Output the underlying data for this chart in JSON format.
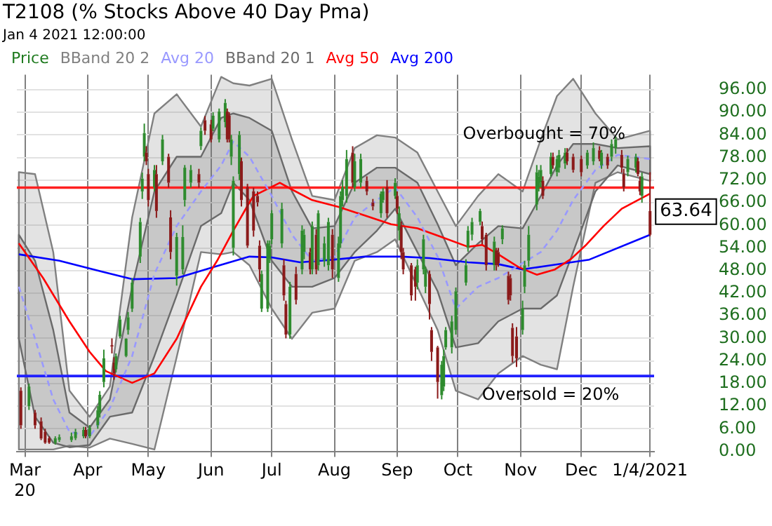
{
  "chart_data": {
    "type": "candlestick",
    "title": "T2108 (% Stocks Above 40 Day Pma)",
    "subtitle": "Jan 4 2021 12:00:00",
    "legend": "top left",
    "grid": true,
    "marker": "none",
    "xlim": [
      "2020-02-26",
      "2021-01-06"
    ],
    "xticks": [
      {
        "value": "2020-03-01",
        "label": "Mar\n20"
      },
      {
        "value": "2020-04-01",
        "label": "Apr"
      },
      {
        "value": "2020-05-01",
        "label": "May"
      },
      {
        "value": "2020-06-01",
        "label": "Jun"
      },
      {
        "value": "2020-07-01",
        "label": "Jul"
      },
      {
        "value": "2020-08-01",
        "label": "Aug"
      },
      {
        "value": "2020-09-01",
        "label": "Sep"
      },
      {
        "value": "2020-10-01",
        "label": "Oct"
      },
      {
        "value": "2020-11-01",
        "label": "Nov"
      },
      {
        "value": "2020-12-01",
        "label": "Dec"
      },
      {
        "value": "2021-01-04",
        "label": "1/4/2021"
      }
    ],
    "ylim": [
      0,
      100
    ],
    "yticks": [
      {
        "value": 0,
        "label": "0.00"
      },
      {
        "value": 6,
        "label": "6.00"
      },
      {
        "value": 12,
        "label": "12.00"
      },
      {
        "value": 18,
        "label": "18.00"
      },
      {
        "value": 24,
        "label": "24.00"
      },
      {
        "value": 30,
        "label": "30.00"
      },
      {
        "value": 36,
        "label": "36.00"
      },
      {
        "value": 42,
        "label": "42.00"
      },
      {
        "value": 48,
        "label": "48.00"
      },
      {
        "value": 54,
        "label": "54.00"
      },
      {
        "value": 60,
        "label": "60.00"
      },
      {
        "value": 66,
        "label": "66.00"
      },
      {
        "value": 72,
        "label": "72.00"
      },
      {
        "value": 78,
        "label": "78.00"
      },
      {
        "value": 84,
        "label": "84.00"
      },
      {
        "value": 90,
        "label": "90.00"
      },
      {
        "value": 96,
        "label": "96.00"
      }
    ],
    "ref_lines": [
      {
        "axis": "y",
        "value": 70,
        "label": "Overbought = 70%",
        "color": "#ff2020"
      },
      {
        "axis": "y",
        "value": 20,
        "label": "Oversold = 20%",
        "color": "#2020ff"
      }
    ],
    "annotations": [
      {
        "text": "63.64",
        "x": "2021-01-04",
        "y": 63.64
      }
    ],
    "series": [
      {
        "name": "Price",
        "type": "candlestick",
        "color": "#1e7a1e",
        "x": [
          "2020-02-28",
          "2020-03-03",
          "2020-03-06",
          "2020-03-09",
          "2020-03-11",
          "2020-03-13",
          "2020-03-16",
          "2020-03-18",
          "2020-03-24",
          "2020-03-26",
          "2020-03-30",
          "2020-03-31",
          "2020-04-02",
          "2020-04-06",
          "2020-04-07",
          "2020-04-09",
          "2020-04-13",
          "2020-04-14",
          "2020-04-15",
          "2020-04-17",
          "2020-04-20",
          "2020-04-21",
          "2020-04-23",
          "2020-04-27",
          "2020-04-28",
          "2020-04-29",
          "2020-04-30",
          "2020-05-01",
          "2020-05-04",
          "2020-05-05",
          "2020-05-08",
          "2020-05-11",
          "2020-05-12",
          "2020-05-15",
          "2020-05-18",
          "2020-05-19",
          "2020-05-22",
          "2020-05-26",
          "2020-05-27",
          "2020-05-29",
          "2020-06-01",
          "2020-06-02",
          "2020-06-05",
          "2020-06-08",
          "2020-06-09",
          "2020-06-10",
          "2020-06-11",
          "2020-06-12",
          "2020-06-15",
          "2020-06-16",
          "2020-06-19",
          "2020-06-22",
          "2020-06-24",
          "2020-06-25",
          "2020-06-26",
          "2020-06-29",
          "2020-06-30",
          "2020-07-01",
          "2020-07-06",
          "2020-07-07",
          "2020-07-08",
          "2020-07-10",
          "2020-07-13",
          "2020-07-16",
          "2020-07-17",
          "2020-07-20",
          "2020-07-21",
          "2020-07-23",
          "2020-07-24",
          "2020-07-27",
          "2020-07-29",
          "2020-07-31",
          "2020-08-03",
          "2020-08-04",
          "2020-08-05",
          "2020-08-07",
          "2020-08-10",
          "2020-08-11",
          "2020-08-14",
          "2020-08-17",
          "2020-08-20",
          "2020-08-24",
          "2020-08-25",
          "2020-08-27",
          "2020-08-31",
          "2020-09-01",
          "2020-09-02",
          "2020-09-03",
          "2020-09-04",
          "2020-09-08",
          "2020-09-10",
          "2020-09-11",
          "2020-09-14",
          "2020-09-15",
          "2020-09-17",
          "2020-09-18",
          "2020-09-21",
          "2020-09-23",
          "2020-09-24",
          "2020-09-25",
          "2020-09-28",
          "2020-09-30",
          "2020-10-05",
          "2020-10-06",
          "2020-10-08",
          "2020-10-12",
          "2020-10-13",
          "2020-10-15",
          "2020-10-19",
          "2020-10-20",
          "2020-10-21",
          "2020-10-23",
          "2020-10-26",
          "2020-10-27",
          "2020-10-28",
          "2020-10-30",
          "2020-11-02",
          "2020-11-03",
          "2020-11-05",
          "2020-11-09",
          "2020-11-10",
          "2020-11-11",
          "2020-11-12",
          "2020-11-16",
          "2020-11-17",
          "2020-11-19",
          "2020-11-20",
          "2020-11-23",
          "2020-11-24",
          "2020-11-27",
          "2020-12-01",
          "2020-12-04",
          "2020-12-07",
          "2020-12-10",
          "2020-12-11",
          "2020-12-14",
          "2020-12-16",
          "2020-12-18",
          "2020-12-21",
          "2020-12-22",
          "2020-12-24",
          "2020-12-28",
          "2020-12-29",
          "2020-12-30",
          "2020-12-31",
          "2021-01-04"
        ],
        "ohlc": [
          [
            16.1,
            17,
            6,
            6.9
          ],
          [
            12,
            18,
            11,
            17.2
          ],
          [
            10.3,
            11,
            6,
            6.9
          ],
          [
            8,
            9,
            3,
            3.4
          ],
          [
            5.2,
            6,
            2,
            2.3
          ],
          [
            3.5,
            4,
            2,
            2.3
          ],
          [
            2.3,
            4,
            1.8,
            3.5
          ],
          [
            3,
            4.5,
            2.5,
            3.8
          ],
          [
            3,
            5,
            2.5,
            4
          ],
          [
            3.5,
            6,
            3,
            5.2
          ],
          [
            4,
            6.5,
            3.5,
            5.7
          ],
          [
            5.7,
            6.5,
            3.5,
            4
          ],
          [
            4,
            7,
            3.5,
            6.3
          ],
          [
            6.9,
            12,
            6,
            10.9
          ],
          [
            10.3,
            16,
            9,
            15
          ],
          [
            18.4,
            27,
            17,
            24.7
          ],
          [
            28.2,
            30,
            26,
            27.8
          ],
          [
            23.6,
            25,
            19,
            20.7
          ],
          [
            21.8,
            26,
            21,
            25.3
          ],
          [
            30.5,
            36,
            30,
            35
          ],
          [
            25.3,
            30,
            25,
            29.9
          ],
          [
            32.2,
            37,
            31,
            35.6
          ],
          [
            37.9,
            46,
            37,
            44.8
          ],
          [
            51.7,
            62,
            50,
            60.9
          ],
          [
            69,
            74,
            67,
            72.4
          ],
          [
            78.2,
            87,
            77,
            84.5
          ],
          [
            79.3,
            81,
            76,
            77
          ],
          [
            73.6,
            75,
            65,
            66.7
          ],
          [
            70.1,
            76,
            69,
            74.7
          ],
          [
            73.6,
            76,
            62,
            63.8
          ],
          [
            77,
            84,
            76,
            82.8
          ],
          [
            78.2,
            79,
            70,
            71.3
          ],
          [
            62.1,
            64,
            51,
            52.9
          ],
          [
            46.6,
            58,
            44,
            56.9
          ],
          [
            48.3,
            60,
            47,
            56.9
          ],
          [
            66.7,
            76,
            65,
            75.3
          ],
          [
            71.3,
            76,
            70,
            74.7
          ],
          [
            73.6,
            75,
            70,
            71.3
          ],
          [
            81,
            86,
            80,
            85.1
          ],
          [
            87.9,
            89,
            84,
            85.1
          ],
          [
            86.8,
            88,
            82,
            82.8
          ],
          [
            85.6,
            90,
            85,
            89.1
          ],
          [
            82.8,
            91,
            82,
            90.2
          ],
          [
            87.4,
            93.5,
            86,
            92.5
          ],
          [
            90.2,
            91,
            82,
            82.8
          ],
          [
            89.1,
            90,
            82,
            82.8
          ],
          [
            78.2,
            84,
            76,
            82.8
          ],
          [
            54,
            73,
            52,
            71.8
          ],
          [
            73.6,
            85,
            72,
            84
          ],
          [
            77,
            78,
            65,
            66.7
          ],
          [
            70.1,
            71,
            54,
            54.6
          ],
          [
            69,
            70,
            57,
            58.6
          ],
          [
            67.8,
            69,
            65,
            66.1
          ],
          [
            54.6,
            56,
            45,
            48.3
          ],
          [
            37.9,
            48,
            37,
            47.1
          ],
          [
            37.9,
            56,
            37,
            55.2
          ],
          [
            51.1,
            56,
            50,
            54.6
          ],
          [
            56.3,
            64,
            55,
            63.2
          ],
          [
            55.2,
            66,
            54,
            64.4
          ],
          [
            49.4,
            51,
            40,
            41.4
          ],
          [
            39.1,
            40,
            30,
            31
          ],
          [
            31,
            45,
            29.9,
            43.7
          ],
          [
            47.1,
            49,
            39,
            40.2
          ],
          [
            48.3,
            60,
            47,
            58.6
          ],
          [
            52.9,
            59,
            51,
            57.5
          ],
          [
            52.9,
            54,
            47,
            48.3
          ],
          [
            48.3,
            61,
            47,
            59.8
          ],
          [
            57.5,
            59,
            47,
            48.3
          ],
          [
            49.4,
            64,
            48,
            63.2
          ],
          [
            50.6,
            57,
            49,
            55.2
          ],
          [
            49.4,
            62,
            48,
            60.9
          ],
          [
            57.5,
            59,
            46,
            48.3
          ],
          [
            46,
            57,
            45,
            55.2
          ],
          [
            55.2,
            69,
            54,
            67.8
          ],
          [
            66.7,
            72,
            65,
            70.1
          ],
          [
            67.8,
            80,
            66,
            77.6
          ],
          [
            79.3,
            81,
            70,
            71.3
          ],
          [
            70.1,
            79,
            69,
            77
          ],
          [
            71.3,
            79,
            70,
            77.6
          ],
          [
            71.8,
            73,
            68,
            69
          ],
          [
            66.1,
            67,
            64,
            65
          ],
          [
            63.2,
            69,
            62,
            68.4
          ],
          [
            66.7,
            70,
            66,
            69
          ],
          [
            70.1,
            72,
            62,
            63.2
          ],
          [
            67.8,
            72.5,
            67,
            71.3
          ],
          [
            67.8,
            69,
            63,
            64.4
          ],
          [
            58.6,
            65,
            56,
            63.2
          ],
          [
            59.8,
            61,
            51,
            52.9
          ],
          [
            52.9,
            54,
            47,
            48.3
          ],
          [
            49.4,
            50,
            40,
            41.4
          ],
          [
            48.3,
            49,
            40,
            43.7
          ],
          [
            44.8,
            51,
            43,
            49.4
          ],
          [
            48.3,
            57.5,
            47,
            56.3
          ],
          [
            43.7,
            49,
            42,
            48.3
          ],
          [
            47.1,
            48,
            35,
            39.1
          ],
          [
            32.2,
            33,
            24,
            26.4
          ],
          [
            27.6,
            28,
            14,
            18.4
          ],
          [
            14.9,
            24,
            13.8,
            23
          ],
          [
            17.2,
            27,
            16,
            25.3
          ],
          [
            27.6,
            33,
            27,
            32.2
          ],
          [
            27.6,
            36,
            26,
            34.5
          ],
          [
            32.2,
            43.5,
            31,
            42.5
          ],
          [
            44.8,
            51,
            44,
            49.4
          ],
          [
            54,
            59.8,
            53,
            58.6
          ],
          [
            57.5,
            62,
            56,
            60.9
          ],
          [
            60.9,
            64.4,
            60,
            63.8
          ],
          [
            59.8,
            61,
            55,
            56.3
          ],
          [
            57.5,
            58,
            48,
            49.4
          ],
          [
            49.4,
            57,
            48,
            55.7
          ],
          [
            53.4,
            54,
            48,
            49.4
          ],
          [
            52.9,
            54,
            49,
            50
          ],
          [
            56.3,
            60,
            55,
            59.2
          ],
          [
            46.6,
            47.7,
            39,
            40.2
          ],
          [
            46,
            47,
            40,
            41.4
          ],
          [
            32.8,
            34,
            23.6,
            25.3
          ],
          [
            30.5,
            33,
            22.4,
            24.7
          ],
          [
            32.2,
            40,
            31,
            37.9
          ],
          [
            43.7,
            50.6,
            42,
            49.4
          ],
          [
            50.6,
            59.8,
            49,
            57.5
          ],
          [
            65.5,
            76,
            64,
            74.1
          ],
          [
            70.1,
            74.7,
            69,
            73
          ],
          [
            71.3,
            76,
            70,
            74.7
          ],
          [
            71.8,
            73,
            67,
            67.8
          ],
          [
            73.6,
            79.3,
            73,
            78.2
          ],
          [
            78.2,
            79.3,
            75,
            75.9
          ],
          [
            74.1,
            78.5,
            73,
            77.6
          ],
          [
            75.3,
            80,
            74,
            78.7
          ],
          [
            76.4,
            80.5,
            75,
            79.3
          ],
          [
            79.3,
            80.5,
            76,
            77
          ],
          [
            78.2,
            79,
            74,
            74.7
          ],
          [
            77.6,
            78.5,
            73,
            74.1
          ],
          [
            75.9,
            80,
            75,
            79.3
          ],
          [
            77,
            82,
            76,
            80.5
          ],
          [
            79.9,
            81,
            77,
            77.6
          ],
          [
            75.9,
            80,
            75,
            79.3
          ],
          [
            78.2,
            79,
            75,
            75.9
          ],
          [
            78.2,
            82.8,
            77,
            81.6
          ],
          [
            80.5,
            83.5,
            79,
            82.8
          ],
          [
            78.7,
            80,
            74,
            75.3
          ],
          [
            73.6,
            75,
            69,
            70.1
          ],
          [
            74.1,
            78.5,
            73,
            77.6
          ],
          [
            75.3,
            79,
            74,
            78.2
          ],
          [
            77,
            78,
            73,
            73.6
          ],
          [
            71.8,
            73,
            68,
            69
          ],
          [
            67.8,
            74,
            66,
            73
          ],
          [
            63.8,
            74.1,
            57.1,
            57.5
          ]
        ],
        "colors": [
          "#8b1a1a",
          "#2e8b2e",
          "#8b1a1a",
          "#8b1a1a",
          "#8b1a1a",
          "#8b1a1a",
          "#2e8b2e",
          "#2e8b2e",
          "#2e8b2e",
          "#2e8b2e",
          "#2e8b2e",
          "#8b1a1a",
          "#2e8b2e",
          "#2e8b2e",
          "#2e8b2e",
          "#2e8b2e",
          "#8b1a1a",
          "#8b1a1a",
          "#2e8b2e",
          "#2e8b2e",
          "#2e8b2e",
          "#2e8b2e",
          "#2e8b2e",
          "#2e8b2e",
          "#2e8b2e",
          "#2e8b2e",
          "#8b1a1a",
          "#8b1a1a",
          "#2e8b2e",
          "#8b1a1a",
          "#2e8b2e",
          "#8b1a1a",
          "#8b1a1a",
          "#2e8b2e",
          "#2e8b2e",
          "#2e8b2e",
          "#2e8b2e",
          "#8b1a1a",
          "#2e8b2e",
          "#8b1a1a",
          "#8b1a1a",
          "#2e8b2e",
          "#2e8b2e",
          "#2e8b2e",
          "#8b1a1a",
          "#8b1a1a",
          "#2e8b2e",
          "#2e8b2e",
          "#2e8b2e",
          "#8b1a1a",
          "#8b1a1a",
          "#8b1a1a",
          "#8b1a1a",
          "#8b1a1a",
          "#2e8b2e",
          "#2e8b2e",
          "#2e8b2e",
          "#2e8b2e",
          "#2e8b2e",
          "#8b1a1a",
          "#8b1a1a",
          "#2e8b2e",
          "#8b1a1a",
          "#2e8b2e",
          "#2e8b2e",
          "#8b1a1a",
          "#2e8b2e",
          "#8b1a1a",
          "#2e8b2e",
          "#2e8b2e",
          "#2e8b2e",
          "#8b1a1a",
          "#2e8b2e",
          "#2e8b2e",
          "#2e8b2e",
          "#2e8b2e",
          "#8b1a1a",
          "#2e8b2e",
          "#2e8b2e",
          "#8b1a1a",
          "#8b1a1a",
          "#2e8b2e",
          "#2e8b2e",
          "#8b1a1a",
          "#2e8b2e",
          "#8b1a1a",
          "#2e8b2e",
          "#8b1a1a",
          "#8b1a1a",
          "#8b1a1a",
          "#8b1a1a",
          "#2e8b2e",
          "#2e8b2e",
          "#2e8b2e",
          "#8b1a1a",
          "#8b1a1a",
          "#8b1a1a",
          "#2e8b2e",
          "#2e8b2e",
          "#2e8b2e",
          "#2e8b2e",
          "#2e8b2e",
          "#2e8b2e",
          "#2e8b2e",
          "#2e8b2e",
          "#2e8b2e",
          "#8b1a1a",
          "#8b1a1a",
          "#2e8b2e",
          "#8b1a1a",
          "#8b1a1a",
          "#2e8b2e",
          "#8b1a1a",
          "#8b1a1a",
          "#8b1a1a",
          "#8b1a1a",
          "#2e8b2e",
          "#2e8b2e",
          "#2e8b2e",
          "#2e8b2e",
          "#2e8b2e",
          "#2e8b2e",
          "#8b1a1a",
          "#2e8b2e",
          "#8b1a1a",
          "#2e8b2e",
          "#2e8b2e",
          "#2e8b2e",
          "#8b1a1a",
          "#8b1a1a",
          "#8b1a1a",
          "#2e8b2e",
          "#2e8b2e",
          "#8b1a1a",
          "#2e8b2e",
          "#8b1a1a",
          "#2e8b2e",
          "#2e8b2e",
          "#8b1a1a",
          "#8b1a1a",
          "#2e8b2e",
          "#2e8b2e",
          "#8b1a1a",
          "#8b1a1a",
          "#2e8b2e",
          "#8b1a1a"
        ]
      },
      {
        "name": "BBand 20 2",
        "type": "area",
        "color": "#808080",
        "x": [
          "2020-02-27",
          "2020-03-06",
          "2020-03-15",
          "2020-03-23",
          "2020-04-02",
          "2020-04-12",
          "2020-04-23",
          "2020-05-04",
          "2020-05-15",
          "2020-05-27",
          "2020-06-06",
          "2020-06-12",
          "2020-06-20",
          "2020-07-01",
          "2020-07-11",
          "2020-07-21",
          "2020-08-01",
          "2020-08-11",
          "2020-08-22",
          "2020-08-31",
          "2020-09-11",
          "2020-09-21",
          "2020-09-30",
          "2020-10-11",
          "2020-10-21",
          "2020-11-02",
          "2020-11-11",
          "2020-11-19",
          "2020-11-27",
          "2020-12-08",
          "2020-12-19",
          "2021-01-04"
        ],
        "values": [
          null,
          null,
          null,
          null,
          null,
          null,
          null,
          null,
          null,
          null,
          null,
          null,
          null,
          null,
          null,
          null,
          null,
          null,
          null,
          null,
          null,
          null,
          null,
          null,
          null,
          null,
          null,
          null,
          null,
          null,
          null,
          null
        ],
        "upper": [
          74.1,
          73.6,
          52.9,
          16.1,
          9.2,
          17.2,
          62.1,
          89.7,
          94.8,
          86.2,
          99.4,
          97.7,
          97.1,
          98.9,
          82.8,
          67.8,
          66.7,
          80.5,
          83.9,
          83.3,
          79.3,
          69,
          59.8,
          67.8,
          73.6,
          69,
          82.8,
          94.3,
          98.9,
          89.7,
          82.8,
          85.1
        ],
        "lower": [
          0.5,
          0.5,
          0.5,
          1.5,
          1,
          3.4,
          2,
          0.5,
          25,
          52.9,
          52.3,
          52.9,
          49.4,
          37.9,
          29.9,
          36.8,
          37.9,
          50.6,
          52.9,
          56.3,
          43.7,
          32.2,
          16.1,
          13.8,
          20.7,
          25.3,
          23,
          21.8,
          43.7,
          71.3,
          74.1,
          71.8
        ]
      },
      {
        "name": "Avg 20",
        "type": "line",
        "color": "#9999ff",
        "line_style": "dashed",
        "x": [
          "2020-02-27",
          "2020-03-06",
          "2020-03-15",
          "2020-03-23",
          "2020-04-02",
          "2020-04-12",
          "2020-04-23",
          "2020-05-04",
          "2020-05-15",
          "2020-05-27",
          "2020-06-06",
          "2020-06-12",
          "2020-06-20",
          "2020-07-01",
          "2020-07-11",
          "2020-07-21",
          "2020-08-01",
          "2020-08-11",
          "2020-08-22",
          "2020-08-31",
          "2020-09-11",
          "2020-09-21",
          "2020-09-30",
          "2020-10-11",
          "2020-10-21",
          "2020-11-02",
          "2020-11-11",
          "2020-11-19",
          "2020-11-27",
          "2020-12-08",
          "2020-12-19",
          "2021-01-04"
        ],
        "values": [
          43.7,
          29.9,
          13.8,
          5.2,
          4,
          11.5,
          25.3,
          47.1,
          59.8,
          69,
          75.9,
          82.2,
          78.2,
          67.8,
          57.5,
          50.6,
          51.7,
          62.1,
          66.7,
          70.1,
          62.1,
          51.7,
          37.9,
          43.7,
          46,
          50,
          52.9,
          58.6,
          66.7,
          74.7,
          78.7,
          77.6
        ]
      },
      {
        "name": "BBand 20 1",
        "type": "area",
        "color": "#6a6a6a",
        "x": [
          "2020-02-27",
          "2020-03-06",
          "2020-03-15",
          "2020-03-23",
          "2020-04-02",
          "2020-04-12",
          "2020-04-23",
          "2020-05-04",
          "2020-05-15",
          "2020-05-27",
          "2020-06-06",
          "2020-06-12",
          "2020-06-20",
          "2020-07-01",
          "2020-07-11",
          "2020-07-21",
          "2020-08-01",
          "2020-08-11",
          "2020-08-22",
          "2020-08-31",
          "2020-09-11",
          "2020-09-21",
          "2020-09-30",
          "2020-10-11",
          "2020-10-21",
          "2020-11-02",
          "2020-11-11",
          "2020-11-19",
          "2020-11-27",
          "2020-12-08",
          "2020-12-19",
          "2021-01-04"
        ],
        "values": [
          null,
          null,
          null,
          null,
          null,
          null,
          null,
          null,
          null,
          null,
          null,
          null,
          null,
          null,
          null,
          null,
          null,
          null,
          null,
          null,
          null,
          null,
          null,
          null,
          null,
          null,
          null,
          null,
          null,
          null,
          null,
          null
        ],
        "upper": [
          57.5,
          50.6,
          32.2,
          10.3,
          6.3,
          13.8,
          43.7,
          69,
          78.2,
          78.2,
          88.5,
          89.7,
          88.5,
          85.1,
          69,
          59.2,
          59.8,
          71.3,
          75.3,
          75.3,
          71.3,
          60.3,
          49.4,
          55.2,
          59.8,
          59.2,
          67.8,
          75.9,
          81.6,
          81.6,
          80.5,
          81
        ],
        "lower": [
          29.9,
          9.2,
          2.3,
          1.1,
          1.7,
          9.2,
          10.3,
          25.3,
          41.4,
          59.8,
          63.2,
          71.3,
          66.7,
          50.6,
          43.7,
          43.7,
          46,
          52.9,
          58.6,
          64.4,
          52.9,
          42.5,
          27.6,
          28.7,
          34.5,
          37.9,
          37.9,
          41.4,
          52.9,
          69,
          75.9,
          73.6
        ]
      },
      {
        "name": "Avg 50",
        "type": "line",
        "color": "#ff0000",
        "x": [
          "2020-02-27",
          "2020-03-10",
          "2020-03-23",
          "2020-04-02",
          "2020-04-10",
          "2020-04-23",
          "2020-05-04",
          "2020-05-15",
          "2020-05-27",
          "2020-06-04",
          "2020-06-12",
          "2020-06-20",
          "2020-06-22",
          "2020-07-05",
          "2020-07-11",
          "2020-07-21",
          "2020-08-03",
          "2020-08-16",
          "2020-08-29",
          "2020-09-11",
          "2020-09-23",
          "2020-10-06",
          "2020-10-13",
          "2020-10-21",
          "2020-10-31",
          "2020-11-09",
          "2020-11-18",
          "2020-11-26",
          "2020-12-03",
          "2020-12-12",
          "2020-12-21",
          "2021-01-04"
        ],
        "values": [
          55.2,
          46,
          34.5,
          26.4,
          21.3,
          18.2,
          20.7,
          29.9,
          43.7,
          50.6,
          58.6,
          66.1,
          67.8,
          71.3,
          69.5,
          66.7,
          64.9,
          62.6,
          60.3,
          59.2,
          56.9,
          54.3,
          54.8,
          52.3,
          48.9,
          46.9,
          48.3,
          51.1,
          54.6,
          59.8,
          64.4,
          68.4
        ]
      },
      {
        "name": "Avg 200",
        "type": "line",
        "color": "#0000ff",
        "x": [
          "2020-02-27",
          "2020-03-18",
          "2020-04-08",
          "2020-04-23",
          "2020-05-15",
          "2020-06-02",
          "2020-06-20",
          "2020-07-01",
          "2020-07-15",
          "2020-08-01",
          "2020-08-16",
          "2020-09-03",
          "2020-09-17",
          "2020-10-06",
          "2020-10-21",
          "2020-11-02",
          "2020-11-16",
          "2020-12-05",
          "2021-01-04"
        ],
        "values": [
          52.3,
          50.6,
          47.7,
          45.7,
          46,
          48.9,
          51.7,
          51.5,
          50.2,
          50.9,
          51.7,
          51.7,
          51.3,
          50.2,
          49.7,
          48.3,
          49.4,
          50.9,
          57.5
        ]
      }
    ]
  }
}
